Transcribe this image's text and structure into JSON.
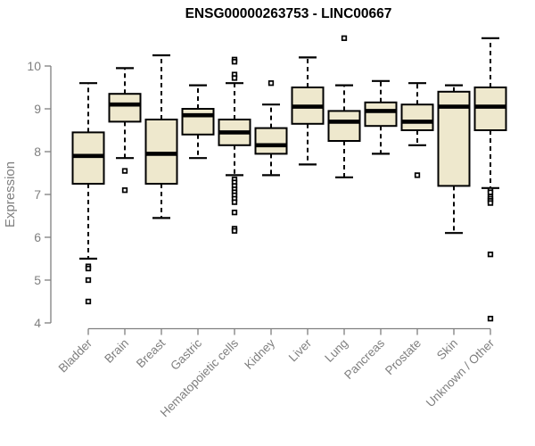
{
  "chart_data": {
    "type": "boxplot",
    "title": "ENSG00000263753 - LINC00667",
    "ylabel": "Expression",
    "xlabel": "",
    "ylim": [
      4,
      10
    ],
    "yticks": [
      4,
      5,
      6,
      7,
      8,
      9,
      10
    ],
    "grid": false,
    "legend": "none",
    "axis_color": "#7f7f7f",
    "box_fill": "#EEE8CD",
    "box_stroke": "#000000",
    "categories": [
      "Bladder",
      "Brain",
      "Breast",
      "Gastric",
      "Hematopoietic cells",
      "Kidney",
      "Liver",
      "Lung",
      "Pancreas",
      "Prostate",
      "Skin",
      "Unknown / Other"
    ],
    "series": [
      {
        "category": "Bladder",
        "low": 5.5,
        "q1": 7.25,
        "median": 7.9,
        "q3": 8.45,
        "high": 9.6,
        "outliers": [
          5.32,
          5.27,
          5.0,
          4.5
        ]
      },
      {
        "category": "Brain",
        "low": 7.85,
        "q1": 8.7,
        "median": 9.1,
        "q3": 9.35,
        "high": 9.95,
        "outliers": [
          7.55,
          7.1
        ]
      },
      {
        "category": "Breast",
        "low": 6.45,
        "q1": 7.25,
        "median": 7.95,
        "q3": 8.75,
        "high": 10.25,
        "outliers": []
      },
      {
        "category": "Gastric",
        "low": 7.85,
        "q1": 8.4,
        "median": 8.85,
        "q3": 9.0,
        "high": 9.55,
        "outliers": []
      },
      {
        "category": "Hematopoietic cells",
        "low": 7.45,
        "q1": 8.15,
        "median": 8.45,
        "q3": 8.75,
        "high": 9.6,
        "outliers": [
          10.15,
          10.1,
          9.8,
          9.72,
          7.35,
          7.28,
          7.2,
          7.12,
          7.05,
          6.98,
          6.9,
          6.82,
          6.58,
          6.2,
          6.15
        ]
      },
      {
        "category": "Kidney",
        "low": 7.45,
        "q1": 7.95,
        "median": 8.15,
        "q3": 8.55,
        "high": 9.1,
        "outliers": [
          9.6
        ]
      },
      {
        "category": "Liver",
        "low": 7.7,
        "q1": 8.65,
        "median": 9.05,
        "q3": 9.5,
        "high": 10.2,
        "outliers": []
      },
      {
        "category": "Lung",
        "low": 7.4,
        "q1": 8.25,
        "median": 8.7,
        "q3": 8.95,
        "high": 9.55,
        "outliers": [
          10.65
        ]
      },
      {
        "category": "Pancreas",
        "low": 7.95,
        "q1": 8.6,
        "median": 8.95,
        "q3": 9.15,
        "high": 9.65,
        "outliers": []
      },
      {
        "category": "Prostate",
        "low": 8.15,
        "q1": 8.5,
        "median": 8.7,
        "q3": 9.1,
        "high": 9.6,
        "outliers": [
          7.45
        ]
      },
      {
        "category": "Skin",
        "low": 6.1,
        "q1": 7.2,
        "median": 9.05,
        "q3": 9.4,
        "high": 9.55,
        "outliers": []
      },
      {
        "category": "Unknown / Other",
        "low": 7.15,
        "q1": 8.5,
        "median": 9.05,
        "q3": 9.5,
        "high": 10.65,
        "outliers": [
          7.1,
          7.05,
          6.95,
          6.9,
          6.85,
          6.8,
          5.6,
          4.1
        ]
      }
    ]
  }
}
